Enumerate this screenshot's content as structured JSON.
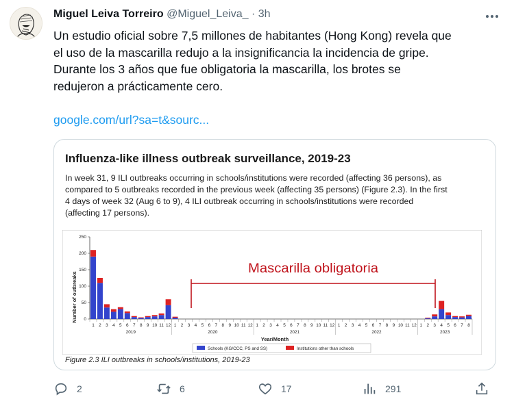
{
  "tweet": {
    "display_name": "Miguel Leiva Torreiro",
    "handle": "@Miguel_Leiva_",
    "separator": "·",
    "time": "3h",
    "text_lines": [
      "Un estudio oficial sobre 7,5 millones de habitantes (Hong Kong) revela que",
      "el uso de la mascarilla redujo a la insignificancia la incidencia de gripe.",
      "Durante los 3 años que fue obligatoria la mascarilla, los brotes se",
      "redujeron a prácticamente cero."
    ],
    "link": "google.com/url?sa=t&sourc..."
  },
  "card": {
    "title": "Influenza-like illness outbreak surveillance, 2019-23",
    "paragraph_lines": [
      "In week 31, 9 ILI outbreaks occurring in schools/institutions were recorded (affecting 36 persons), as",
      "compared to 5 outbreaks recorded in the previous week (affecting 35 persons) (Figure 2.3). In the first",
      "4 days of week 32 (Aug 6 to 9), 4 ILI outbreak occurring in schools/institutions were recorded",
      "(affecting 17 persons)."
    ],
    "caption": "Figure 2.3 ILI outbreaks in schools/institutions, 2019-23"
  },
  "chart_data": {
    "type": "bar",
    "ylabel": "Number of outbreaks",
    "xlabel": "Year/Month",
    "ylim": [
      0,
      250
    ],
    "y_ticks": [
      0,
      50,
      100,
      150,
      200,
      250
    ],
    "annotation": "Mascarilla obligatoria",
    "years": [
      "2019",
      "2020",
      "2021",
      "2022",
      "2023"
    ],
    "month_ticks": [
      "1",
      "2",
      "3",
      "4",
      "5",
      "6",
      "7",
      "8",
      "9",
      "10",
      "11",
      "12",
      "1",
      "2",
      "3",
      "4",
      "5",
      "6",
      "7",
      "8",
      "9",
      "10",
      "11",
      "12",
      "1",
      "2",
      "3",
      "4",
      "5",
      "6",
      "7",
      "8",
      "9",
      "10",
      "11",
      "12",
      "1",
      "2",
      "3",
      "4",
      "5",
      "6",
      "7",
      "8",
      "9",
      "10",
      "11",
      "12",
      "1",
      "2",
      "3",
      "4",
      "5",
      "6",
      "7",
      "8"
    ],
    "legend": [
      "Schools (KG/CCC, PS and SS)",
      "Institutions other than schools"
    ],
    "colors": {
      "schools": "#3344cc",
      "institutions": "#dd2222",
      "annotation": "#c0141c"
    },
    "series": [
      {
        "name": "Schools (KG/CCC, PS and SS)",
        "values": [
          190,
          110,
          35,
          22,
          30,
          18,
          6,
          3,
          6,
          8,
          12,
          42,
          4,
          0,
          0,
          0,
          0,
          0,
          0,
          0,
          0,
          0,
          0,
          0,
          0,
          0,
          0,
          0,
          0,
          0,
          0,
          0,
          0,
          0,
          0,
          0,
          0,
          0,
          0,
          0,
          0,
          0,
          0,
          0,
          0,
          0,
          0,
          0,
          0,
          2,
          8,
          30,
          12,
          6,
          5,
          9
        ]
      },
      {
        "name": "Institutions other than schools",
        "values": [
          20,
          15,
          10,
          8,
          6,
          5,
          3,
          2,
          3,
          4,
          5,
          18,
          3,
          0,
          0,
          0,
          0,
          0,
          0,
          0,
          0,
          0,
          0,
          0,
          0,
          0,
          0,
          0,
          0,
          0,
          0,
          0,
          0,
          0,
          0,
          0,
          0,
          0,
          0,
          0,
          0,
          0,
          0,
          0,
          0,
          0,
          0,
          0,
          0,
          2,
          6,
          25,
          8,
          3,
          3,
          4
        ]
      }
    ]
  },
  "actions": {
    "reply_count": "2",
    "retweet_count": "6",
    "like_count": "17",
    "view_count": "291"
  },
  "icons": [
    "avatar-sketch",
    "more-icon",
    "reply-icon",
    "retweet-icon",
    "like-icon",
    "views-icon",
    "share-icon"
  ]
}
